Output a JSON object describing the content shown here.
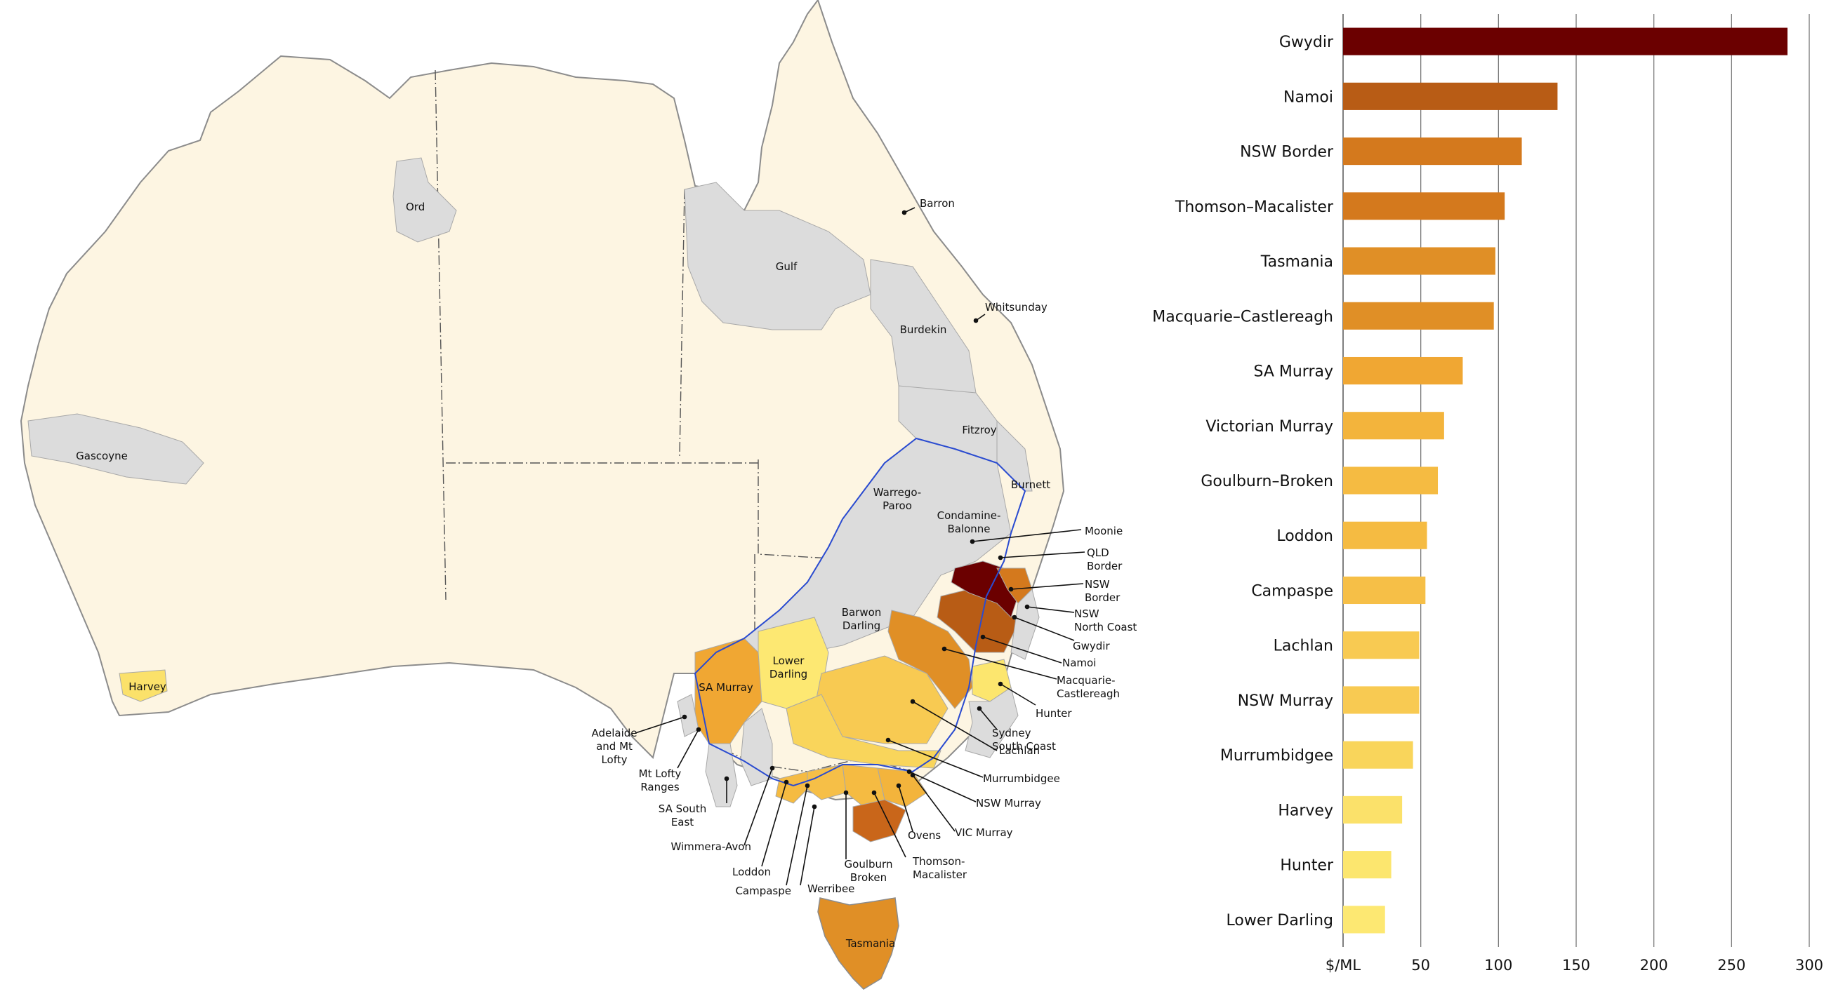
{
  "map": {
    "colors": {
      "land": "#fdf5e2",
      "coast": "#8c8c8c",
      "noData": "#dcdcdc",
      "mdbBoundary": "#2a4bd0",
      "stateBorder": "#555555"
    },
    "labels": [
      {
        "id": "ord",
        "text": "Ord"
      },
      {
        "id": "barron",
        "text": "Barron"
      },
      {
        "id": "gulf",
        "text": "Gulf"
      },
      {
        "id": "whitsunday",
        "text": "Whitsunday"
      },
      {
        "id": "burdekin",
        "text": "Burdekin"
      },
      {
        "id": "fitzroy",
        "text": "Fitzroy"
      },
      {
        "id": "gascoyne",
        "text": "Gascoyne"
      },
      {
        "id": "burnett",
        "text": "Burnett"
      },
      {
        "id": "warrego",
        "text": "Warrego-\nParoo"
      },
      {
        "id": "condamine",
        "text": "Condamine-\nBalonne"
      },
      {
        "id": "moonie",
        "text": "Moonie"
      },
      {
        "id": "qld-border",
        "text": "QLD\nBorder"
      },
      {
        "id": "nsw-border",
        "text": "NSW\nBorder"
      },
      {
        "id": "nsw-north-coast",
        "text": "NSW\nNorth Coast"
      },
      {
        "id": "gwydir",
        "text": "Gwydir"
      },
      {
        "id": "namoi",
        "text": "Namoi"
      },
      {
        "id": "macquarie",
        "text": "Macquarie-\nCastlereagh"
      },
      {
        "id": "barwon",
        "text": "Barwon\nDarling"
      },
      {
        "id": "lower-darling",
        "text": "Lower\nDarling"
      },
      {
        "id": "hunter",
        "text": "Hunter"
      },
      {
        "id": "sydney",
        "text": "Sydney\nSouth Coast"
      },
      {
        "id": "lachlan",
        "text": "Lachlan"
      },
      {
        "id": "murrumbidgee",
        "text": "Murrumbidgee"
      },
      {
        "id": "nsw-murray",
        "text": "NSW Murray"
      },
      {
        "id": "vic-murray",
        "text": "VIC Murray"
      },
      {
        "id": "ovens",
        "text": "Ovens"
      },
      {
        "id": "thomson",
        "text": "Thomson-\nMacalister"
      },
      {
        "id": "goulburn",
        "text": "Goulburn\nBroken"
      },
      {
        "id": "werribee",
        "text": "Werribee"
      },
      {
        "id": "campaspe",
        "text": "Campaspe"
      },
      {
        "id": "loddon",
        "text": "Loddon"
      },
      {
        "id": "wimmera",
        "text": "Wimmera-Avon"
      },
      {
        "id": "sa-south-east",
        "text": "SA South\nEast"
      },
      {
        "id": "mt-lofty",
        "text": "Mt Lofty\nRanges"
      },
      {
        "id": "adelaide",
        "text": "Adelaide\nand Mt\nLofty"
      },
      {
        "id": "sa-murray",
        "text": "SA Murray"
      },
      {
        "id": "harvey",
        "text": "Harvey"
      },
      {
        "id": "tasmania",
        "text": "Tasmania"
      }
    ]
  },
  "chart_data": {
    "type": "bar",
    "orientation": "horizontal",
    "categories": [
      "Gwydir",
      "Namoi",
      "NSW Border",
      "Thomson–Macalister",
      "Tasmania",
      "Macquarie–Castlereagh",
      "SA Murray",
      "Victorian Murray",
      "Goulburn–Broken",
      "Loddon",
      "Campaspe",
      "Lachlan",
      "NSW Murray",
      "Murrumbidgee",
      "Harvey",
      "Hunter",
      "Lower Darling"
    ],
    "values": [
      286,
      138,
      115,
      104,
      98,
      97,
      77,
      65,
      61,
      54,
      53,
      49,
      49,
      45,
      38,
      31,
      27
    ],
    "colors": [
      "#6b0000",
      "#b85c15",
      "#d4791d",
      "#d4791d",
      "#e08f26",
      "#e08f26",
      "#f0a733",
      "#f3b43c",
      "#f5bb42",
      "#f5bb42",
      "#f6bf47",
      "#f8ca52",
      "#f8ca52",
      "#f9d55b",
      "#fbe16a",
      "#fce66e",
      "#fde872"
    ],
    "xlabel": "$/ML",
    "xticks": [
      50,
      100,
      150,
      200,
      250,
      300
    ],
    "xlim": [
      0,
      300
    ],
    "grid": "vertical"
  }
}
